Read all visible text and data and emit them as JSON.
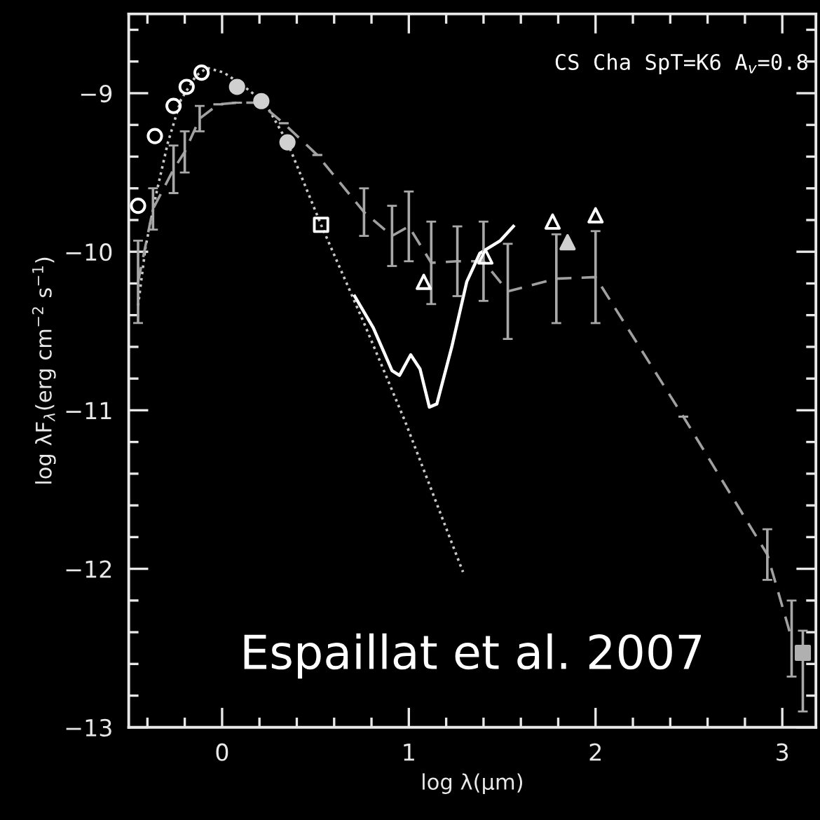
{
  "chart_data": {
    "type": "line",
    "xlabel": "log λ(μm)",
    "ylabel": "log λF$_{λ}$(erg cm$^{−2}$ s$^{−1}$)",
    "annotations": [
      "CS Cha SpT=K6 A$_{v}$=0.8",
      "Espaillat et al. 2007"
    ],
    "xlim": [
      -0.5,
      3.18
    ],
    "ylim": [
      -13,
      -8.5
    ],
    "xticks": [
      {
        "value": -0.4,
        "label": null
      },
      {
        "value": -0.2,
        "label": null
      },
      0,
      {
        "value": 0.2,
        "label": null
      },
      {
        "value": 0.4,
        "label": null
      },
      {
        "value": 0.6,
        "label": null
      },
      {
        "value": 0.8,
        "label": null
      },
      1,
      {
        "value": 1.2,
        "label": null
      },
      {
        "value": 1.4,
        "label": null
      },
      {
        "value": 1.6,
        "label": null
      },
      {
        "value": 1.8,
        "label": null
      },
      2,
      {
        "value": 2.2,
        "label": null
      },
      {
        "value": 2.4,
        "label": null
      },
      {
        "value": 2.6,
        "label": null
      },
      {
        "value": 2.8,
        "label": null
      },
      3
    ],
    "yticks": [
      {
        "value": -13,
        "label": "−13"
      },
      {
        "value": -12.8,
        "label": null
      },
      {
        "value": -12.6,
        "label": null
      },
      {
        "value": -12.4,
        "label": null
      },
      {
        "value": -12.2,
        "label": null
      },
      {
        "value": -12,
        "label": "−12"
      },
      {
        "value": -11.8,
        "label": null
      },
      {
        "value": -11.6,
        "label": null
      },
      {
        "value": -11.4,
        "label": null
      },
      {
        "value": -11.2,
        "label": null
      },
      {
        "value": -11,
        "label": "−11"
      },
      {
        "value": -10.8,
        "label": null
      },
      {
        "value": -10.6,
        "label": null
      },
      {
        "value": -10.4,
        "label": null
      },
      {
        "value": -10.2,
        "label": null
      },
      {
        "value": -10,
        "label": "−10"
      },
      {
        "value": -9.8,
        "label": null
      },
      {
        "value": -9.6,
        "label": null
      },
      {
        "value": -9.4,
        "label": null
      },
      {
        "value": -9.2,
        "label": null
      },
      {
        "value": -9,
        "label": "−9"
      },
      {
        "value": -8.8,
        "label": null
      },
      {
        "value": -8.6,
        "label": null
      }
    ],
    "grid": false,
    "legend": false,
    "series": [
      {
        "line_style": "dotted",
        "color": "#c8c8c8",
        "x": [
          -0.45,
          -0.41,
          -0.35,
          -0.29,
          -0.22,
          -0.14,
          -0.08,
          0.01,
          0.12,
          0.23,
          0.35,
          0.53,
          0.76,
          0.98,
          1.29
        ],
        "values": [
          -10.34,
          -9.97,
          -9.62,
          -9.31,
          -9.04,
          -8.89,
          -8.84,
          -8.87,
          -8.96,
          -9.06,
          -9.31,
          -9.83,
          -10.45,
          -11.07,
          -12.02
        ]
      },
      {
        "line_style": "dashed",
        "color": "#a0a0a0",
        "x": [
          -0.45,
          -0.37,
          -0.26,
          -0.2,
          -0.12,
          -0.02,
          0.08,
          0.2,
          0.33,
          0.51,
          0.76,
          0.91,
          1.0,
          1.12,
          1.26,
          1.4,
          1.53,
          1.79,
          2.0,
          2.47,
          2.92,
          3.05
        ],
        "values": [
          -10.19,
          -9.73,
          -9.48,
          -9.37,
          -9.16,
          -9.07,
          -9.06,
          -9.06,
          -9.19,
          -9.39,
          -9.75,
          -9.9,
          -9.84,
          -10.07,
          -10.06,
          -10.06,
          -10.25,
          -10.17,
          -10.16,
          -11.04,
          -11.91,
          -12.44
        ],
        "errors": [
          0.26,
          0.13,
          0.15,
          0.13,
          0.08,
          null,
          null,
          null,
          null,
          null,
          0.15,
          0.19,
          0.22,
          0.26,
          0.22,
          0.25,
          0.3,
          0.28,
          0.29,
          null,
          0.16,
          0.24
        ]
      },
      {
        "line_style": "solid",
        "color": "#ffffff",
        "x": [
          0.71,
          0.81,
          0.91,
          0.95,
          1.01,
          1.06,
          1.11,
          1.15,
          1.23,
          1.31,
          1.38,
          1.49,
          1.56
        ],
        "values": [
          -10.28,
          -10.48,
          -10.75,
          -10.78,
          -10.65,
          -10.74,
          -10.98,
          -10.96,
          -10.6,
          -10.19,
          -10.01,
          -9.93,
          -9.84
        ]
      },
      {
        "type": "scatter",
        "marker": "circle",
        "color": "#ffffff",
        "x": [
          -0.45,
          -0.36,
          -0.26,
          -0.19,
          -0.11
        ],
        "values": [
          -9.71,
          -9.27,
          -9.08,
          -8.96,
          -8.87
        ]
      },
      {
        "type": "scatter",
        "marker": "circle",
        "color": "#d0d0d0",
        "x": [
          0.08,
          0.21,
          0.35
        ],
        "values": [
          -8.96,
          -9.05,
          -9.31
        ]
      },
      {
        "type": "scatter",
        "marker": "square",
        "color": "#ffffff",
        "x": [
          0.53
        ],
        "values": [
          -9.83
        ]
      },
      {
        "type": "scatter",
        "marker": "square",
        "color": "#b0b0b0",
        "x": [
          3.11
        ],
        "values": [
          -12.53
        ],
        "errors": [
          [
            -12.9,
            -12.39
          ]
        ]
      },
      {
        "type": "scatter",
        "marker": "triangle",
        "color": "#ffffff",
        "x": [
          1.08,
          1.41,
          1.77,
          2.0
        ],
        "values": [
          -10.19,
          -10.03,
          -9.81,
          -9.77
        ]
      },
      {
        "type": "scatter",
        "marker": "triangle",
        "color": "#d0d0d0",
        "x": [
          1.85
        ],
        "values": [
          -9.94
        ]
      }
    ]
  }
}
